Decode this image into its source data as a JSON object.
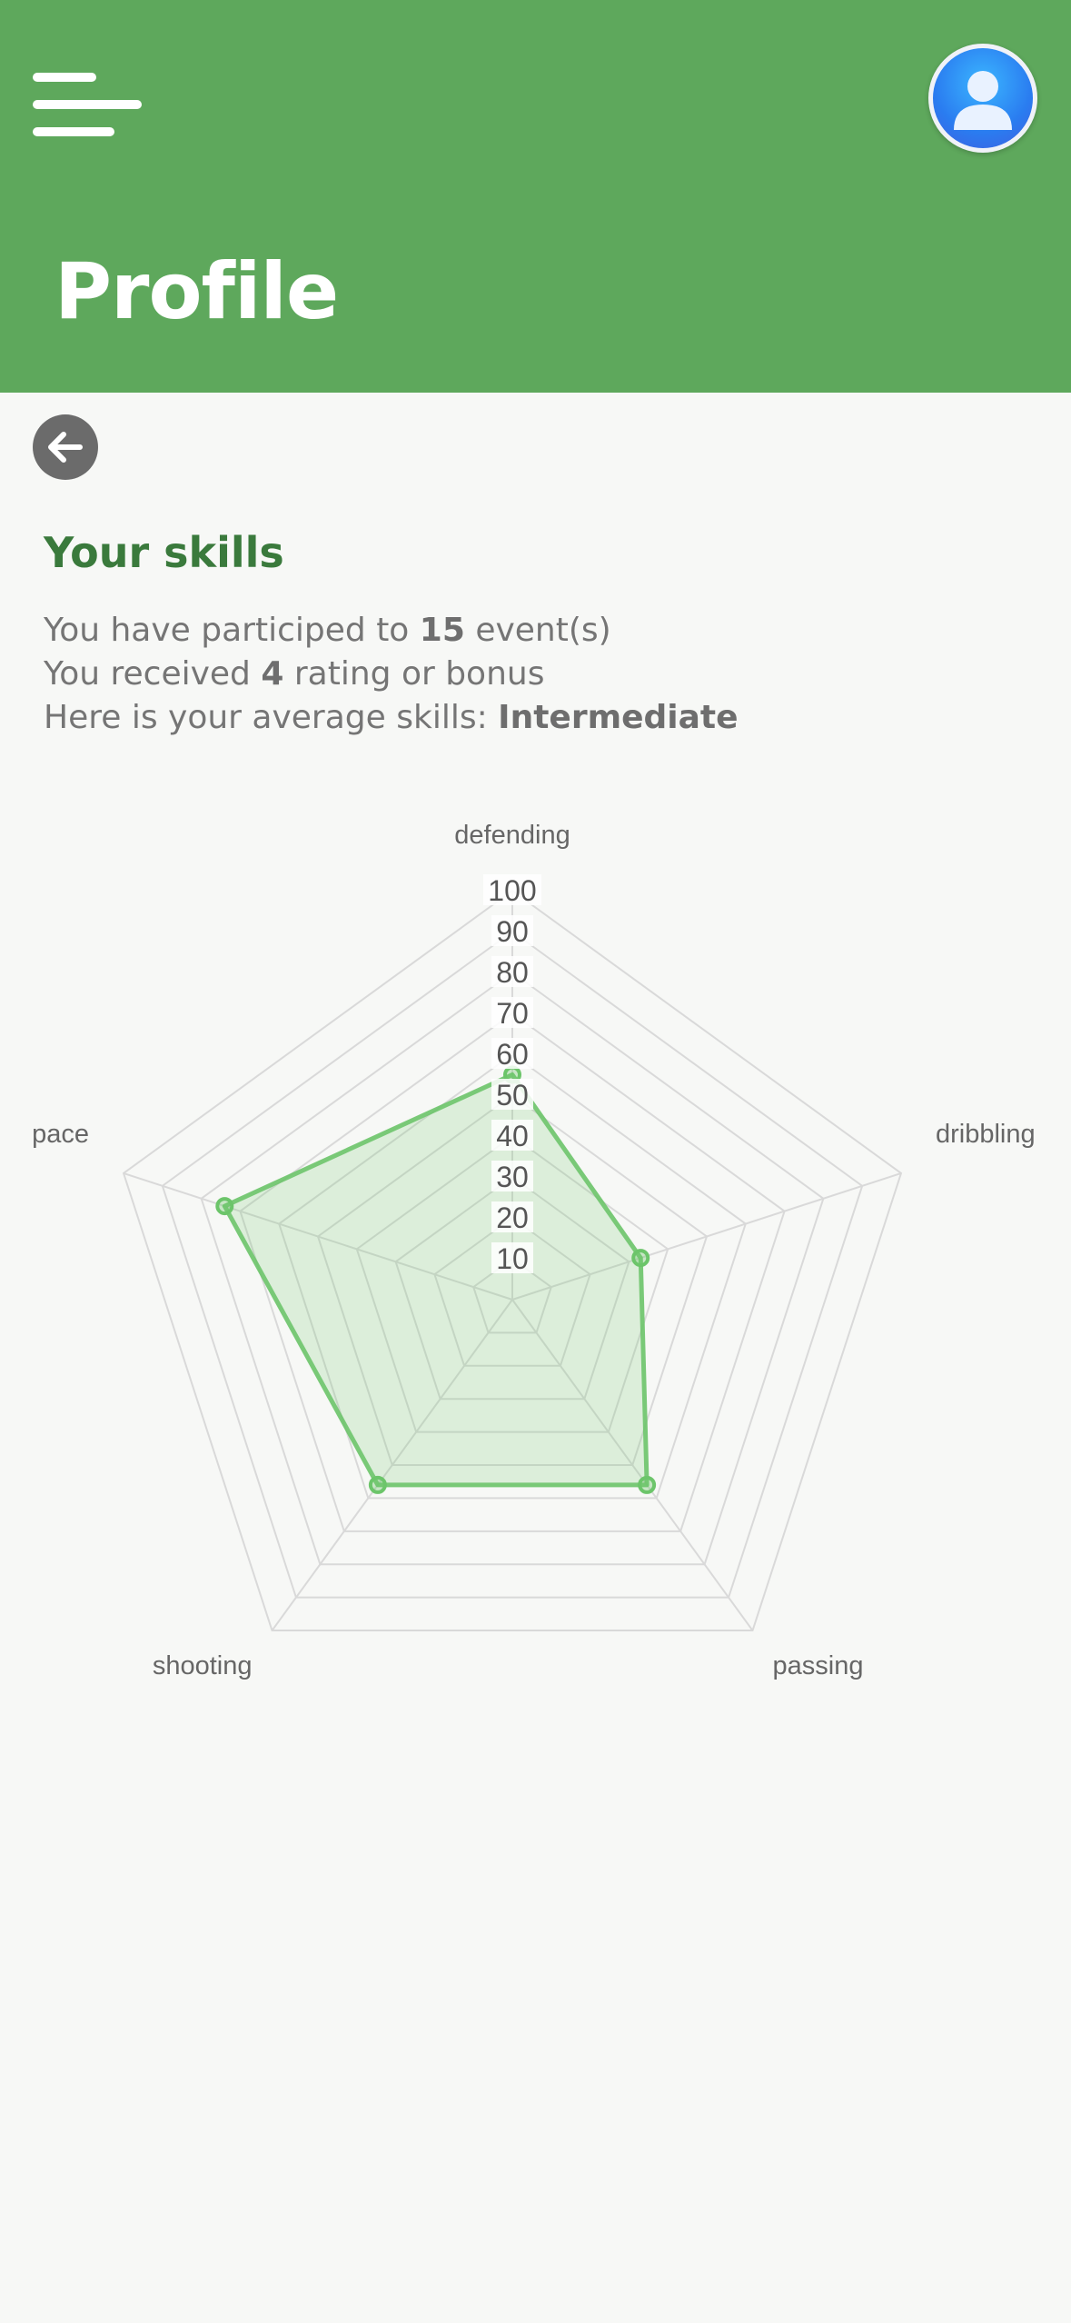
{
  "header": {
    "title": "Profile",
    "menu_icon": "hamburger-menu-icon",
    "avatar_icon": "user-avatar-icon",
    "background": "#5ea85c"
  },
  "back_icon": "arrow-left-icon",
  "skills": {
    "title": "Your skills",
    "line1_prefix": "You have participed to ",
    "events_count": "15",
    "line1_suffix": " event(s)",
    "line2_prefix": "You received ",
    "ratings_count": "4",
    "line2_suffix": " rating or bonus",
    "line3_prefix": "Here is your average skills: ",
    "level": "Intermediate"
  },
  "chart_data": {
    "type": "radar",
    "categories": [
      "defending",
      "dribbling",
      "passing",
      "shooting",
      "pace"
    ],
    "values": [
      55,
      33,
      56,
      56,
      74
    ],
    "ticks": [
      "10",
      "20",
      "30",
      "40",
      "50",
      "60",
      "70",
      "80",
      "90",
      "100"
    ],
    "rlim": [
      0,
      100
    ],
    "grid": true,
    "color": "#6cc56a"
  }
}
